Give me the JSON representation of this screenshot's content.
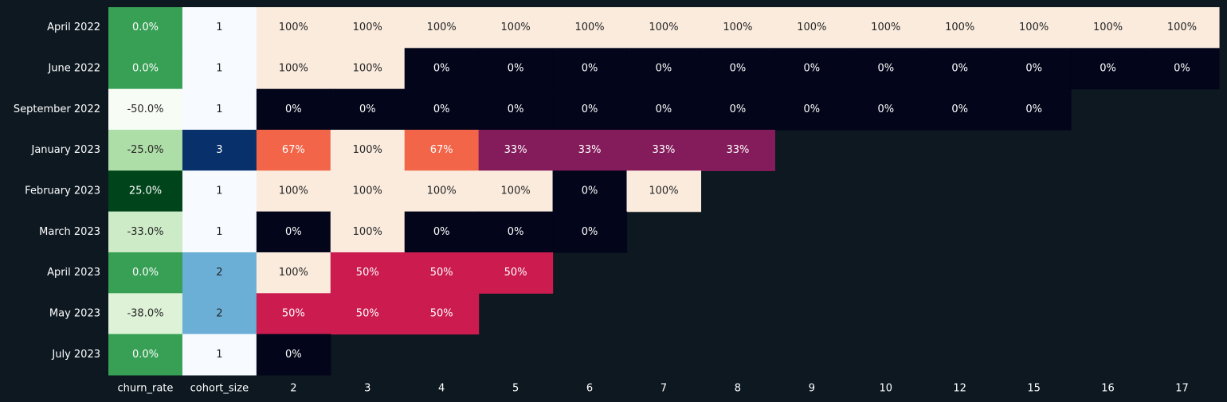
{
  "chart_data": {
    "type": "heatmap",
    "title": "",
    "xlabel": "",
    "ylabel": "",
    "columns": [
      "churn_rate",
      "cohort_size",
      "2",
      "3",
      "4",
      "5",
      "6",
      "7",
      "8",
      "9",
      "10",
      "12",
      "15",
      "16",
      "17"
    ],
    "rows": [
      "April 2022",
      "June 2022",
      "September 2022",
      "January 2023",
      "February 2023",
      "March 2023",
      "April 2023",
      "May 2023",
      "July 2023"
    ],
    "churn_rate": [
      0.0,
      0.0,
      -50.0,
      -25.0,
      25.0,
      -33.0,
      0.0,
      -38.0,
      0.0
    ],
    "churn_rate_labels": [
      "0.0%",
      "0.0%",
      "-50.0%",
      "-25.0%",
      "25.0%",
      "-33.0%",
      "0.0%",
      "-38.0%",
      "0.0%"
    ],
    "cohort_size": [
      1,
      1,
      1,
      3,
      1,
      1,
      2,
      2,
      1
    ],
    "cohort_size_labels": [
      "1",
      "1",
      "1",
      "3",
      "1",
      "1",
      "2",
      "2",
      "1"
    ],
    "retention": [
      [
        100,
        100,
        100,
        100,
        100,
        100,
        100,
        100,
        100,
        100,
        100,
        100,
        100
      ],
      [
        100,
        100,
        0,
        0,
        0,
        0,
        0,
        0,
        0,
        0,
        0,
        0,
        0
      ],
      [
        0,
        0,
        0,
        0,
        0,
        0,
        0,
        0,
        0,
        0,
        0,
        null,
        null
      ],
      [
        67,
        100,
        67,
        33,
        33,
        33,
        33,
        null,
        null,
        null,
        null,
        null,
        null
      ],
      [
        100,
        100,
        100,
        100,
        0,
        100,
        null,
        null,
        null,
        null,
        null,
        null,
        null
      ],
      [
        0,
        100,
        0,
        0,
        0,
        null,
        null,
        null,
        null,
        null,
        null,
        null,
        null
      ],
      [
        100,
        50,
        50,
        50,
        null,
        null,
        null,
        null,
        null,
        null,
        null,
        null,
        null
      ],
      [
        50,
        50,
        50,
        null,
        null,
        null,
        null,
        null,
        null,
        null,
        null,
        null,
        null
      ],
      [
        0,
        null,
        null,
        null,
        null,
        null,
        null,
        null,
        null,
        null,
        null,
        null,
        null
      ]
    ],
    "retention_labels": [
      [
        "100%",
        "100%",
        "100%",
        "100%",
        "100%",
        "100%",
        "100%",
        "100%",
        "100%",
        "100%",
        "100%",
        "100%",
        "100%"
      ],
      [
        "100%",
        "100%",
        "0%",
        "0%",
        "0%",
        "0%",
        "0%",
        "0%",
        "0%",
        "0%",
        "0%",
        "0%",
        "0%"
      ],
      [
        "0%",
        "0%",
        "0%",
        "0%",
        "0%",
        "0%",
        "0%",
        "0%",
        "0%",
        "0%",
        "0%",
        null,
        null
      ],
      [
        "67%",
        "100%",
        "67%",
        "33%",
        "33%",
        "33%",
        "33%",
        null,
        null,
        null,
        null,
        null,
        null
      ],
      [
        "100%",
        "100%",
        "100%",
        "100%",
        "0%",
        "100%",
        null,
        null,
        null,
        null,
        null,
        null,
        null
      ],
      [
        "0%",
        "100%",
        "0%",
        "0%",
        "0%",
        null,
        null,
        null,
        null,
        null,
        null,
        null,
        null
      ],
      [
        "100%",
        "50%",
        "50%",
        "50%",
        null,
        null,
        null,
        null,
        null,
        null,
        null,
        null,
        null
      ],
      [
        "50%",
        "50%",
        "50%",
        null,
        null,
        null,
        null,
        null,
        null,
        null,
        null,
        null,
        null
      ],
      [
        "0%",
        null,
        null,
        null,
        null,
        null,
        null,
        null,
        null,
        null,
        null,
        null,
        null
      ]
    ],
    "colormaps": {
      "churn_rate": "Greens",
      "cohort_size": "Blues",
      "retention": "rocket"
    },
    "grid": false,
    "legend": "none"
  },
  "colors": {
    "background": "#0d1821",
    "text": "#ffffff",
    "empty_cell": "#0d1821"
  }
}
